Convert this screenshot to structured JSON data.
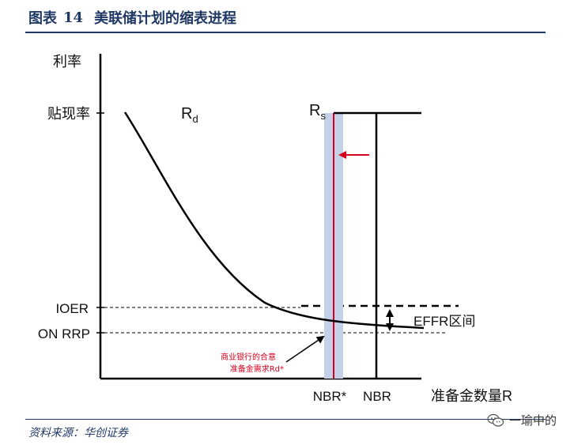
{
  "figure": {
    "label": "图表",
    "number": "14",
    "title": "美联储计划的缩表进程"
  },
  "axes": {
    "y_label": "利率",
    "x_label": "准备金数量R"
  },
  "levels": {
    "discount": "贴现率",
    "ioer": "IOER",
    "on_rrp": "ON RRP"
  },
  "curves": {
    "demand": {
      "main": "R",
      "sub": "d"
    },
    "supply": {
      "main": "R",
      "sub": "s"
    }
  },
  "x_marks": {
    "nbr_star": "NBR*",
    "nbr": "NBR"
  },
  "annotations": {
    "effr_range": "EFFR区间",
    "optimal_line1": "商业银行的合意",
    "optimal_line2": "准备金需求Rd*"
  },
  "colors": {
    "title": "#1f3864",
    "band": "#c5d0e9",
    "red": "#d6001c",
    "ink": "#000000"
  },
  "source": "资料来源：华创证券",
  "watermark": {
    "icon": "wechat-icon",
    "text": "一瑜中的"
  }
}
